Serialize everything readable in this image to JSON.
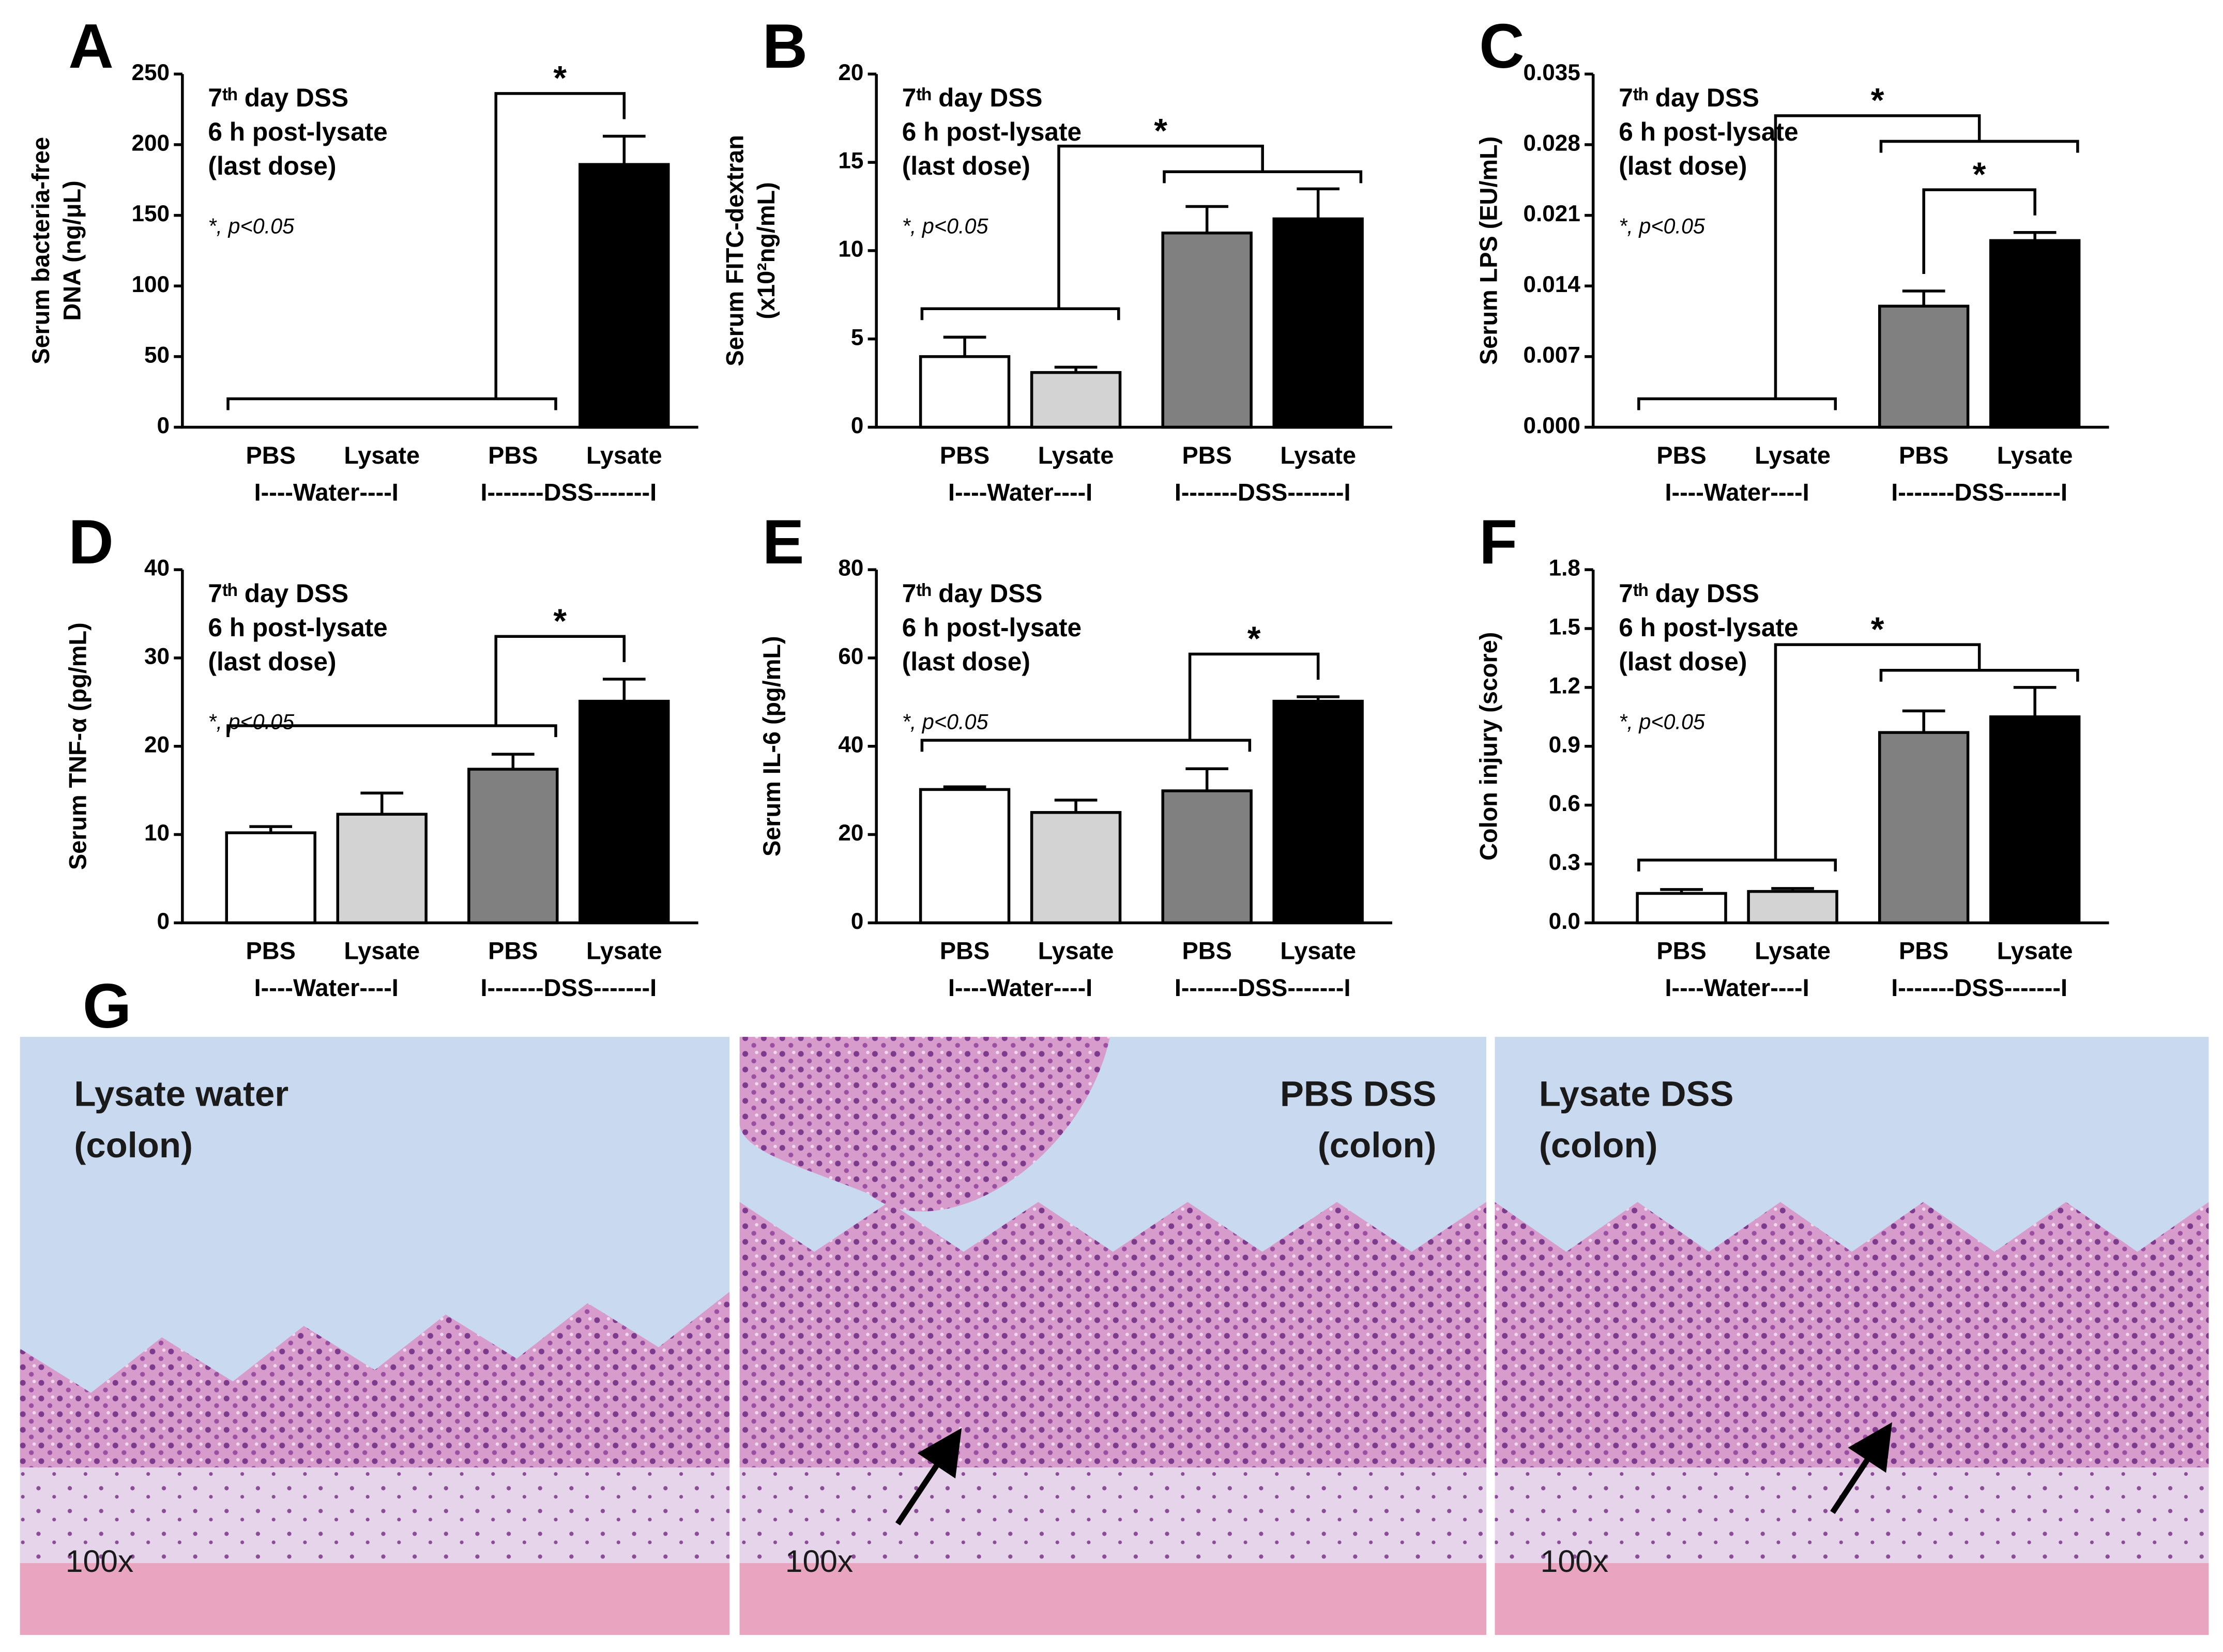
{
  "chart_data": [
    {
      "type": "bar",
      "panel": "A",
      "ylabel": [
        "Serum bacteria-free",
        "DNA (ng/μL)"
      ],
      "notes": [
        "7ᵗʰ day DSS",
        "6 h post-lysate",
        "(last dose)"
      ],
      "significance_note": "*, p<0.05",
      "categories": [
        "PBS",
        "Lysate",
        "PBS",
        "Lysate"
      ],
      "group_labels": [
        "I----Water----I",
        "I-------DSS-------I"
      ],
      "values": [
        0,
        0,
        0,
        186
      ],
      "errors": [
        null,
        null,
        null,
        20
      ],
      "bar_colors": [
        "#ffffff",
        "#d3d3d3",
        "#808080",
        "#000000"
      ],
      "ylim": [
        0,
        250
      ],
      "yticks": [
        0,
        50,
        100,
        150,
        200,
        250
      ],
      "brackets": [
        {
          "label": "*",
          "left": [
            0,
            2
          ],
          "right": [
            3,
            3
          ]
        }
      ]
    },
    {
      "type": "bar",
      "panel": "B",
      "ylabel": [
        "Serum FITC-dextran",
        "(x10²ng/mL)"
      ],
      "notes": [
        "7ᵗʰ day DSS",
        "6 h post-lysate",
        "(last dose)"
      ],
      "significance_note": "*, p<0.05",
      "categories": [
        "PBS",
        "Lysate",
        "PBS",
        "Lysate"
      ],
      "group_labels": [
        "I----Water----I",
        "I-------DSS-------I"
      ],
      "values": [
        4.0,
        3.1,
        11.0,
        11.8
      ],
      "errors": [
        1.1,
        0.3,
        1.5,
        1.7
      ],
      "bar_colors": [
        "#ffffff",
        "#d3d3d3",
        "#808080",
        "#000000"
      ],
      "ylim": [
        0,
        20
      ],
      "yticks": [
        0,
        5,
        10,
        15,
        20
      ],
      "brackets": [
        {
          "label": "*",
          "left": [
            0,
            1
          ],
          "right": [
            2,
            3
          ]
        }
      ]
    },
    {
      "type": "bar",
      "panel": "C",
      "ylabel": [
        "Serum LPS (EU/mL)"
      ],
      "notes": [
        "7ᵗʰ day DSS",
        "6 h post-lysate",
        "(last dose)"
      ],
      "significance_note": "*, p<0.05",
      "categories": [
        "PBS",
        "Lysate",
        "PBS",
        "Lysate"
      ],
      "group_labels": [
        "I----Water----I",
        "I-------DSS-------I"
      ],
      "values": [
        0,
        0,
        0.012,
        0.0185
      ],
      "errors": [
        null,
        null,
        0.0015,
        0.0008
      ],
      "bar_colors": [
        "#ffffff",
        "#d3d3d3",
        "#808080",
        "#000000"
      ],
      "ylim": [
        0,
        0.035
      ],
      "yticks": [
        {
          "value": 0,
          "label": "0.000"
        },
        0.007,
        0.014,
        0.021,
        0.028,
        0.035
      ],
      "brackets": [
        {
          "label": "*",
          "left": [
            2,
            2
          ],
          "right": [
            3,
            3
          ]
        },
        {
          "label": "*",
          "left": [
            0,
            1
          ],
          "right": [
            2,
            3
          ]
        }
      ]
    },
    {
      "type": "bar",
      "panel": "D",
      "ylabel": [
        "Serum TNF-α (pg/mL)"
      ],
      "notes": [
        "7ᵗʰ day DSS",
        "6 h post-lysate",
        "(last dose)"
      ],
      "significance_note": "*, p<0.05",
      "categories": [
        "PBS",
        "Lysate",
        "PBS",
        "Lysate"
      ],
      "group_labels": [
        "I----Water----I",
        "I-------DSS-------I"
      ],
      "values": [
        10.2,
        12.3,
        17.4,
        25.1
      ],
      "errors": [
        0.7,
        2.4,
        1.7,
        2.5
      ],
      "bar_colors": [
        "#ffffff",
        "#d3d3d3",
        "#808080",
        "#000000"
      ],
      "ylim": [
        0,
        40
      ],
      "yticks": [
        0,
        10,
        20,
        30,
        40
      ],
      "brackets": [
        {
          "label": "*",
          "left": [
            0,
            2
          ],
          "right": [
            3,
            3
          ]
        }
      ]
    },
    {
      "type": "bar",
      "panel": "E",
      "ylabel": [
        "Serum IL-6 (pg/mL)"
      ],
      "notes": [
        "7ᵗʰ day DSS",
        "6 h post-lysate",
        "(last dose)"
      ],
      "significance_note": "*, p<0.05",
      "categories": [
        "PBS",
        "Lysate",
        "PBS",
        "Lysate"
      ],
      "group_labels": [
        "I----Water----I",
        "I-------DSS-------I"
      ],
      "values": [
        30.2,
        25.0,
        29.9,
        50.2
      ],
      "errors": [
        0.6,
        2.8,
        5.0,
        1.0
      ],
      "bar_colors": [
        "#ffffff",
        "#d3d3d3",
        "#808080",
        "#000000"
      ],
      "ylim": [
        0,
        80
      ],
      "yticks": [
        0,
        20,
        40,
        60,
        80
      ],
      "brackets": [
        {
          "label": "*",
          "left": [
            0,
            2
          ],
          "right": [
            3,
            3
          ]
        }
      ]
    },
    {
      "type": "bar",
      "panel": "F",
      "ylabel": [
        "Colon injury (score)"
      ],
      "notes": [
        "7ᵗʰ day DSS",
        "6 h post-lysate",
        "(last dose)"
      ],
      "significance_note": "*, p<0.05",
      "categories": [
        "PBS",
        "Lysate",
        "PBS",
        "Lysate"
      ],
      "group_labels": [
        "I----Water----I",
        "I-------DSS-------I"
      ],
      "values": [
        0.15,
        0.16,
        0.97,
        1.05
      ],
      "errors": [
        0.02,
        0.015,
        0.11,
        0.15
      ],
      "bar_colors": [
        "#ffffff",
        "#d3d3d3",
        "#808080",
        "#000000"
      ],
      "ylim": [
        0,
        1.8
      ],
      "yticks": [
        {
          "value": 0,
          "label": "0.0"
        },
        0.3,
        0.6,
        0.9,
        1.2,
        1.5,
        1.8
      ],
      "brackets": [
        {
          "label": "*",
          "left": [
            0,
            1
          ],
          "right": [
            2,
            3
          ]
        }
      ]
    }
  ],
  "panel_g": {
    "label": "G",
    "images": [
      {
        "caption": [
          "Lysate water",
          "(colon)"
        ],
        "magnification": "100x"
      },
      {
        "caption": [
          "PBS DSS",
          "(colon)"
        ],
        "magnification": "100x"
      },
      {
        "caption": [
          "Lysate DSS",
          "(colon)"
        ],
        "magnification": "100x"
      }
    ]
  }
}
